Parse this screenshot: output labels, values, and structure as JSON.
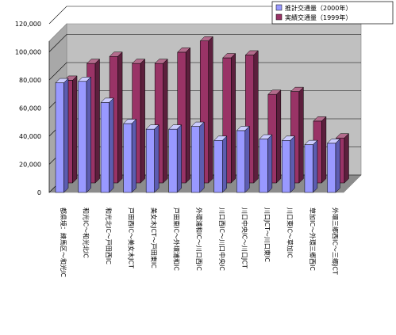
{
  "chart_data": {
    "type": "bar",
    "categories": [
      "都県境：練馬区～和光IC",
      "和光IC～和光北IC",
      "和光北IC～戸田西IC",
      "戸田西IC～美女木JCT",
      "美女木JCT～戸田東IC",
      "戸田東IC～外環浦和IC",
      "外環浦和IC～川口西IC",
      "川口西IC～川口中央IC",
      "川口中央IC～川口JCT",
      "川口JCT～川口東IC",
      "川口東IC～草加IC",
      "草加IC～外環三郷西IC",
      "外環三郷西IC～三郷JCT"
    ],
    "series": [
      {
        "name": "推計交通量（2000年）",
        "color": "#9999ff",
        "values": [
          78000,
          79000,
          64000,
          49000,
          45000,
          45000,
          47000,
          37000,
          44000,
          38000,
          37000,
          34000,
          35000
        ]
      },
      {
        "name": "実績交通量（1999年）",
        "color": "#993366",
        "values": [
          73000,
          85000,
          90000,
          85000,
          85000,
          93000,
          101000,
          89000,
          91000,
          63000,
          65000,
          44000,
          32000
        ]
      }
    ],
    "ylim": [
      0,
      120000
    ],
    "yticks": [
      "0",
      "20,000",
      "40,000",
      "60,000",
      "80,000",
      "100,000",
      "120,000"
    ],
    "grid": true,
    "legend_position": "top-right"
  }
}
